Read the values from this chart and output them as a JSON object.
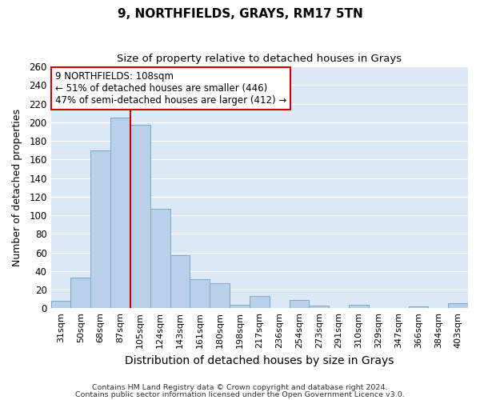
{
  "title": "9, NORTHFIELDS, GRAYS, RM17 5TN",
  "subtitle": "Size of property relative to detached houses in Grays",
  "xlabel": "Distribution of detached houses by size in Grays",
  "ylabel": "Number of detached properties",
  "categories": [
    "31sqm",
    "50sqm",
    "68sqm",
    "87sqm",
    "105sqm",
    "124sqm",
    "143sqm",
    "161sqm",
    "180sqm",
    "198sqm",
    "217sqm",
    "236sqm",
    "254sqm",
    "273sqm",
    "291sqm",
    "310sqm",
    "329sqm",
    "347sqm",
    "366sqm",
    "384sqm",
    "403sqm"
  ],
  "values": [
    8,
    33,
    170,
    205,
    197,
    107,
    57,
    31,
    27,
    4,
    13,
    0,
    9,
    3,
    0,
    4,
    0,
    0,
    2,
    0,
    5
  ],
  "bar_color": "#b8d0e8",
  "bar_edge_color": "#7aaac8",
  "vline_color": "#cc0000",
  "ylim": [
    0,
    260
  ],
  "yticks": [
    0,
    20,
    40,
    60,
    80,
    100,
    120,
    140,
    160,
    180,
    200,
    220,
    240,
    260
  ],
  "annotation_title": "9 NORTHFIELDS: 108sqm",
  "annotation_line1": "← 51% of detached houses are smaller (446)",
  "annotation_line2": "47% of semi-detached houses are larger (412) →",
  "annotation_box_color": "#ffffff",
  "annotation_box_edge": "#cc0000",
  "footer1": "Contains HM Land Registry data © Crown copyright and database right 2024.",
  "footer2": "Contains public sector information licensed under the Open Government Licence v3.0.",
  "fig_bg_color": "#ffffff",
  "plot_bg_color": "#dce8f5",
  "grid_color": "#ffffff",
  "vline_index": 4
}
